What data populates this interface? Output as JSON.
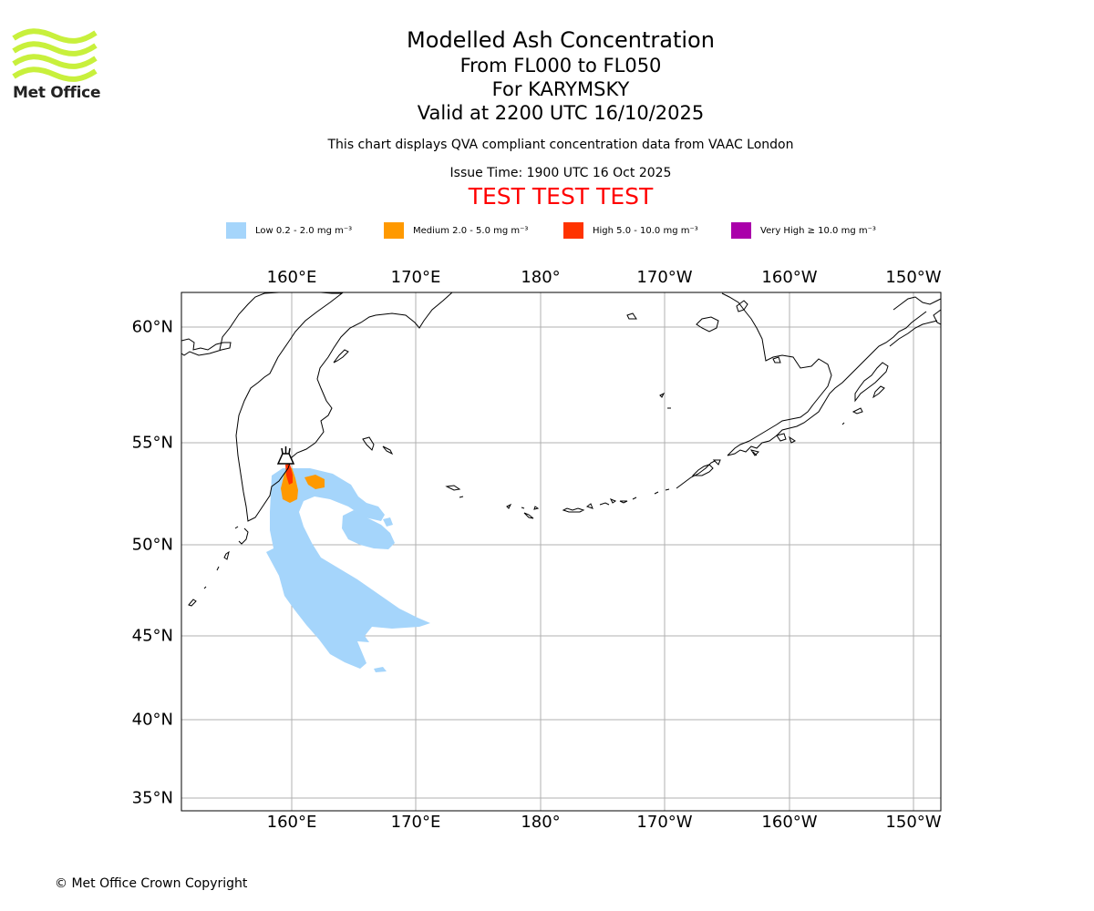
{
  "logo": {
    "text": "Met Office",
    "color": "#c8f03c"
  },
  "title": {
    "main": "Modelled Ash Concentration",
    "levels": "From FL000 to FL050",
    "volcano": "For KARYMSKY",
    "valid": "Valid at 2200 UTC 16/10/2025",
    "note": "This chart displays QVA compliant concentration data from VAAC London",
    "issue": "Issue Time: 1900 UTC 16 Oct 2025",
    "test": "TEST TEST TEST"
  },
  "legend": [
    {
      "label": "Low 0.2 - 2.0 mg m⁻³",
      "color": "#a5d5fb"
    },
    {
      "label": "Medium 2.0 - 5.0 mg m⁻³",
      "color": "#ff9900"
    },
    {
      "label": "High 5.0 - 10.0 mg m⁻³",
      "color": "#ff3300"
    },
    {
      "label": "Very High  ≥  10.0 mg m⁻³",
      "color": "#aa00aa"
    }
  ],
  "map": {
    "lon_ticks": [
      "160°E",
      "170°E",
      "180°",
      "170°W",
      "160°W",
      "150°W"
    ],
    "lat_ticks": [
      "60°N",
      "55°N",
      "50°N",
      "45°N",
      "40°N",
      "35°N"
    ],
    "volcano_marker": "volcano-icon"
  },
  "copyright": "© Met Office Crown Copyright"
}
